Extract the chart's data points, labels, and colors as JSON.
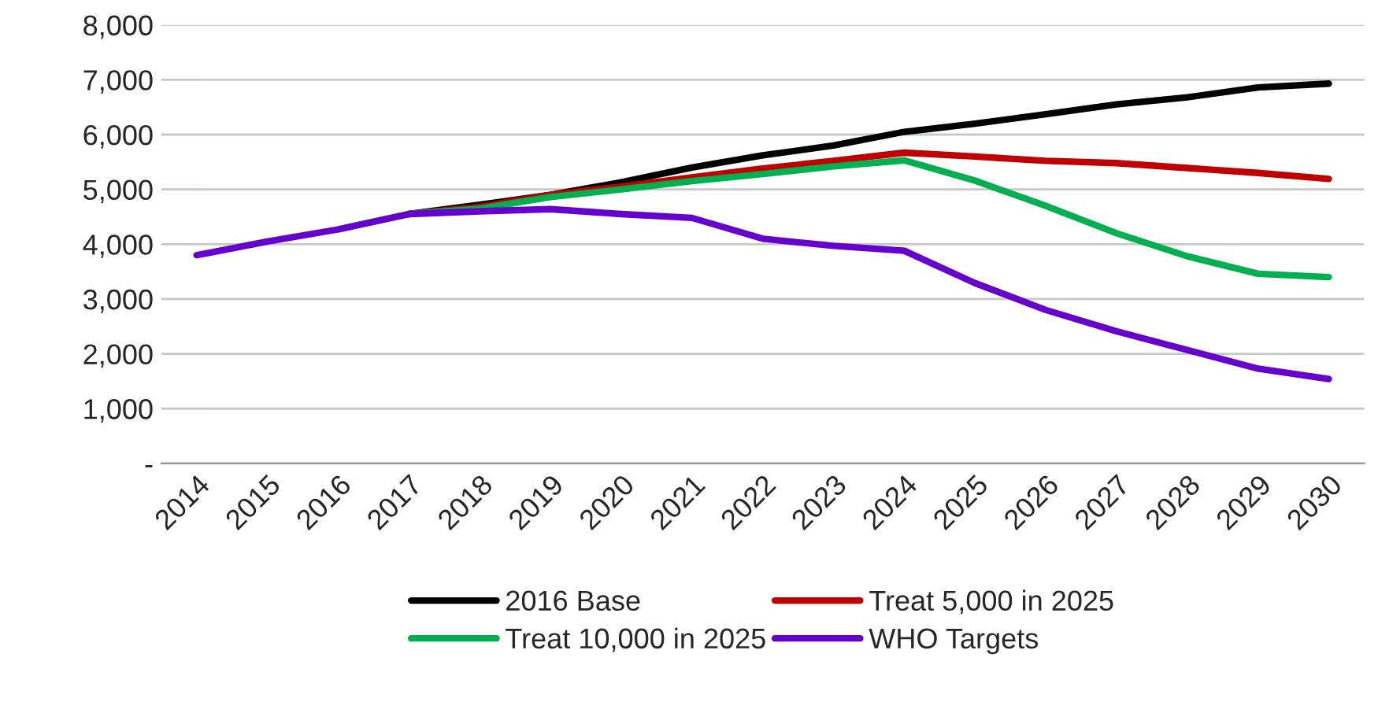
{
  "chart_data": {
    "type": "line",
    "categories": [
      "2014",
      "2015",
      "2016",
      "2017",
      "2018",
      "2019",
      "2020",
      "2021",
      "2022",
      "2023",
      "2024",
      "2025",
      "2026",
      "2027",
      "2028",
      "2029",
      "2030"
    ],
    "series": [
      {
        "name": "2016 Base",
        "color": "#000000",
        "values": [
          null,
          null,
          null,
          4550,
          4720,
          4900,
          5130,
          5400,
          5620,
          5800,
          6050,
          6200,
          6370,
          6550,
          6680,
          6860,
          6930
        ]
      },
      {
        "name": "Treat 5,000 in 2025",
        "color": "#c00000",
        "values": [
          null,
          null,
          null,
          4550,
          4680,
          4900,
          5050,
          5220,
          5380,
          5520,
          5670,
          5600,
          5520,
          5480,
          5390,
          5300,
          5190
        ]
      },
      {
        "name": "Treat 10,000 in 2025",
        "color": "#00b050",
        "values": [
          null,
          null,
          4270,
          4550,
          4650,
          4860,
          5000,
          5150,
          5280,
          5420,
          5530,
          5160,
          4700,
          4200,
          3780,
          3460,
          3400
        ]
      },
      {
        "name": "WHO Targets",
        "color": "#6600cc",
        "values": [
          3800,
          4050,
          4270,
          4550,
          4600,
          4640,
          4550,
          4480,
          4100,
          3970,
          3880,
          3290,
          2800,
          2410,
          2070,
          1730,
          1540
        ]
      }
    ],
    "ylim": [
      0,
      8000
    ],
    "yticks": [
      {
        "value": 0,
        "label": "-"
      },
      {
        "value": 1000,
        "label": "1,000"
      },
      {
        "value": 2000,
        "label": "2,000"
      },
      {
        "value": 3000,
        "label": "3,000"
      },
      {
        "value": 4000,
        "label": "4,000"
      },
      {
        "value": 5000,
        "label": "5,000"
      },
      {
        "value": 6000,
        "label": "6,000"
      },
      {
        "value": 7000,
        "label": "7,000"
      },
      {
        "value": 8000,
        "label": "8,000"
      }
    ],
    "grid": "y",
    "legend": "bottom",
    "marker": "none",
    "line_style": "solid"
  }
}
